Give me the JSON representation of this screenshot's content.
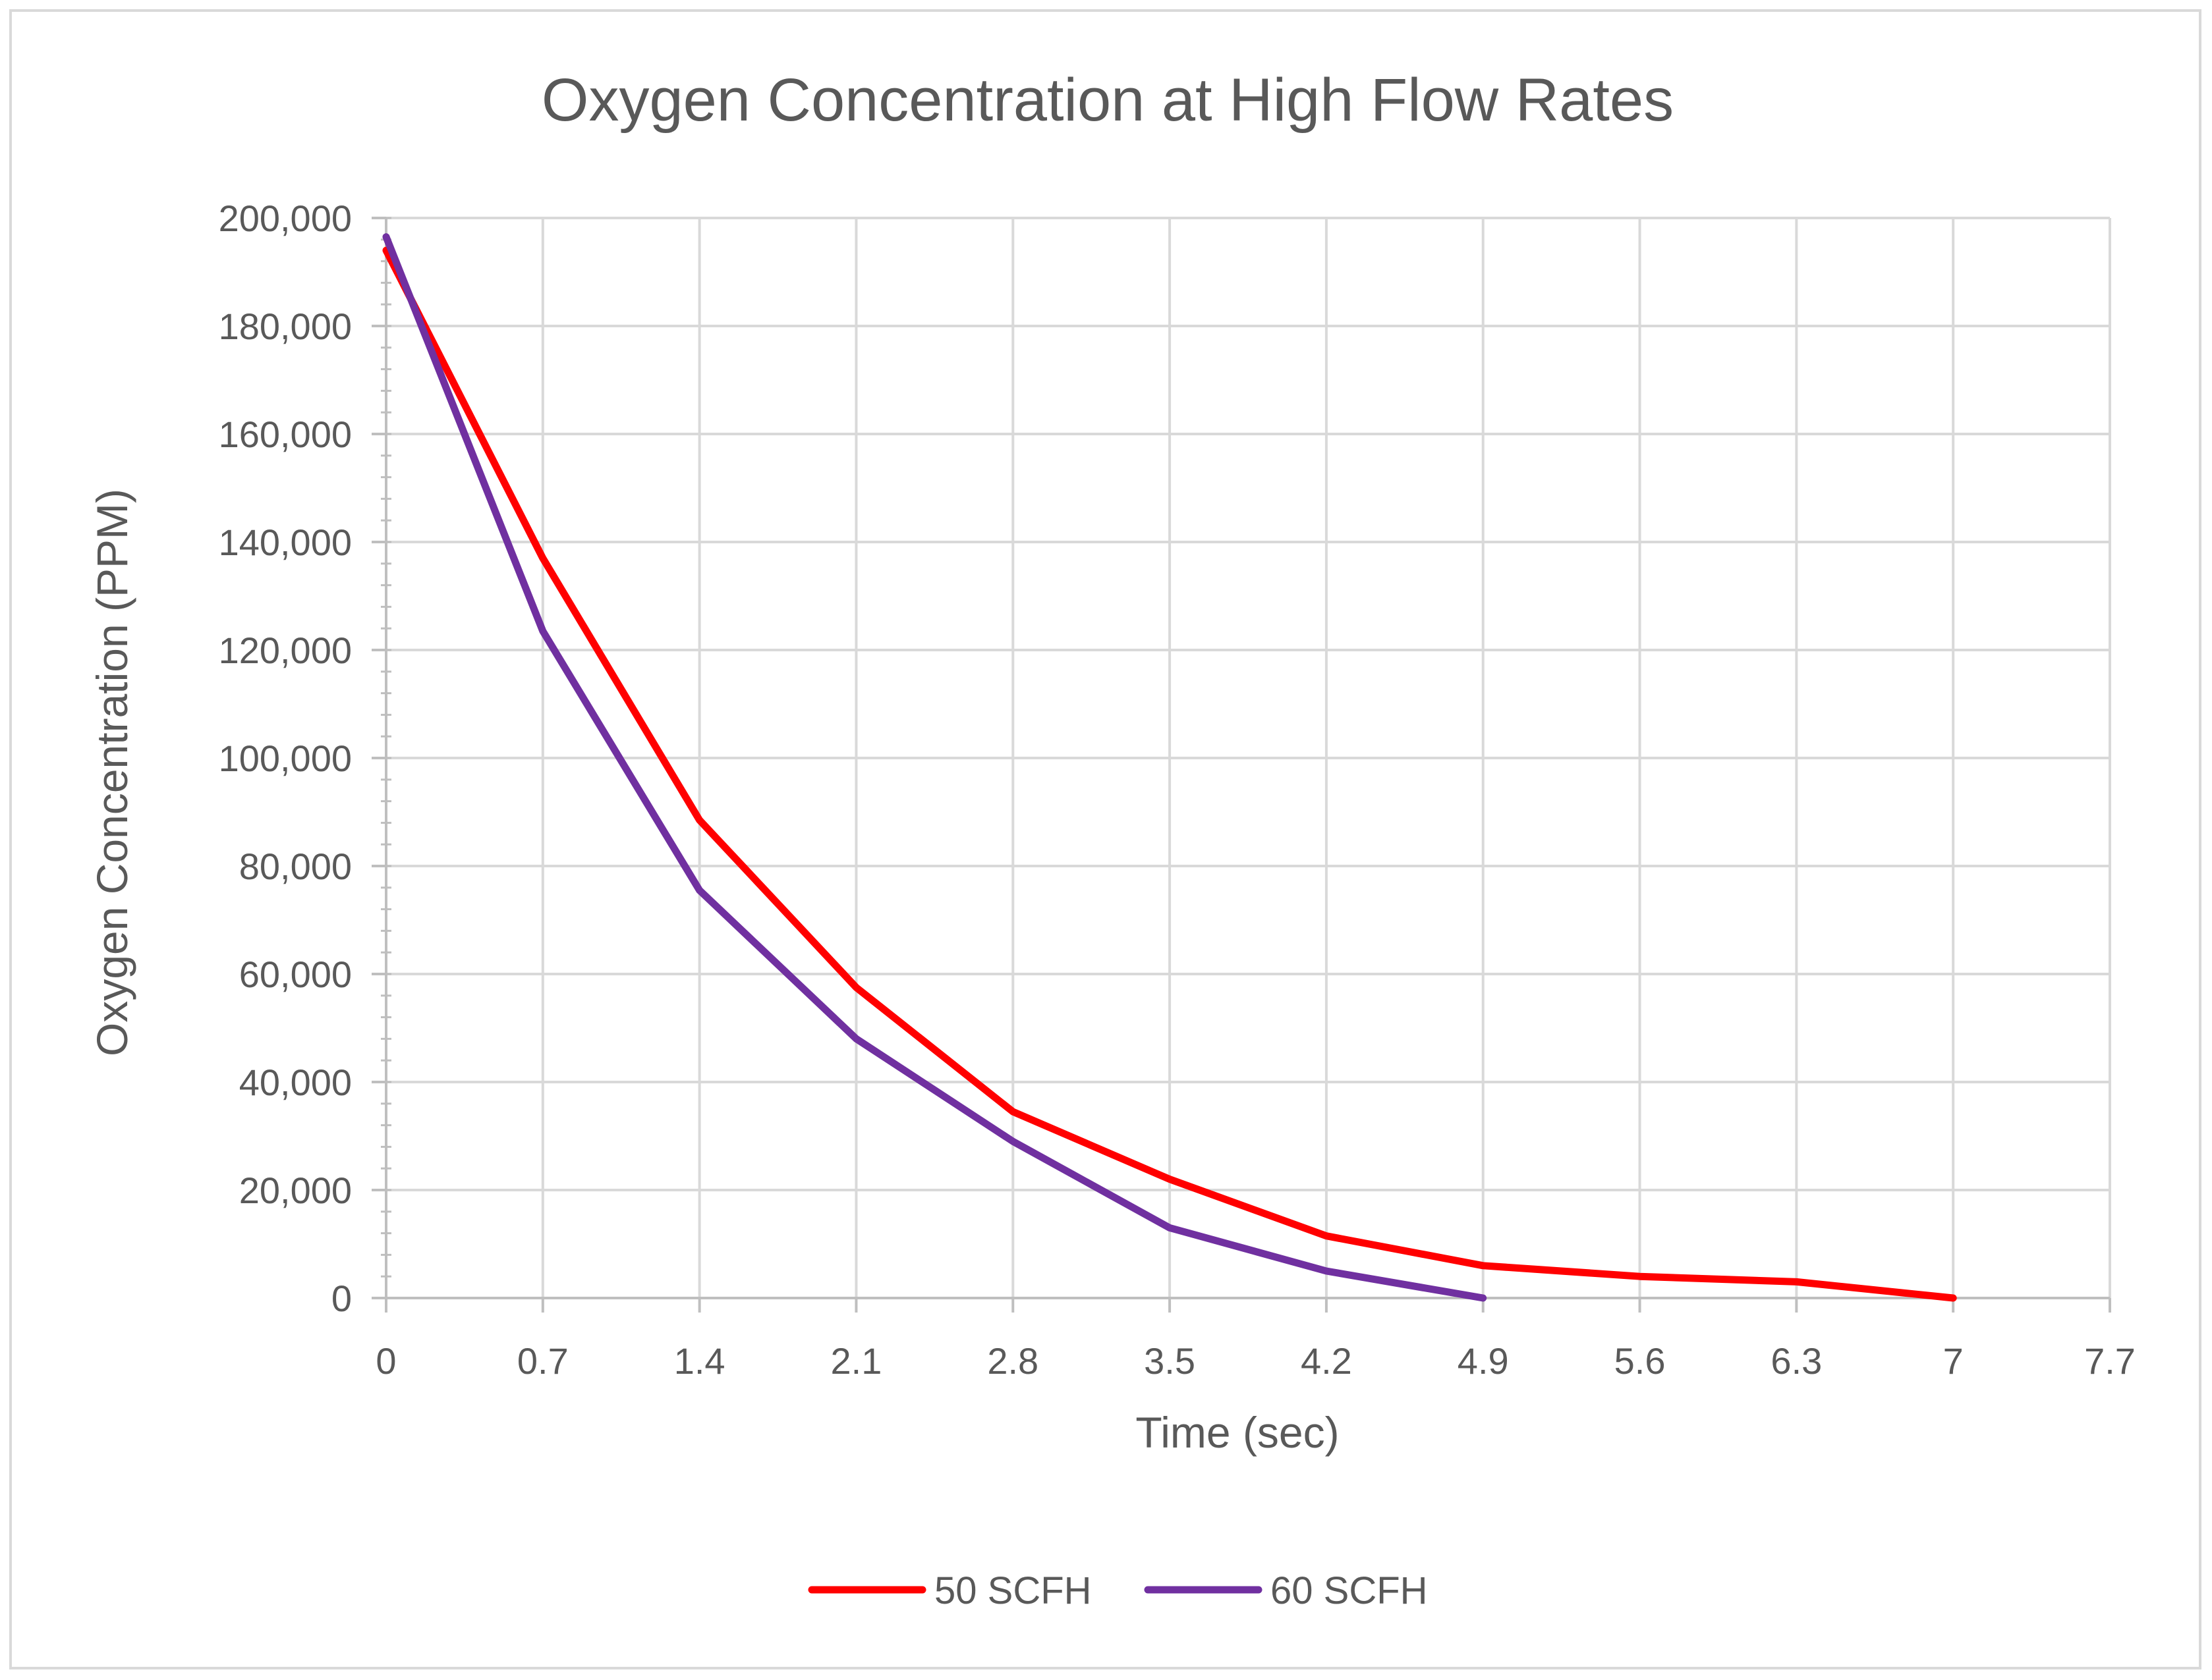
{
  "chart_data": {
    "type": "line",
    "title": "Oxygen Concentration at High Flow Rates",
    "xlabel": "Time (sec)",
    "ylabel": "Oxygen Concentration (PPM)",
    "xlim": [
      0,
      7.7
    ],
    "ylim": [
      0,
      200000
    ],
    "x_ticks": [
      "0",
      "0.7",
      "1.4",
      "2.1",
      "2.8",
      "3.5",
      "4.2",
      "4.9",
      "5.6",
      "6.3",
      "7",
      "7.7"
    ],
    "y_ticks": [
      "0",
      "20,000",
      "40,000",
      "60,000",
      "80,000",
      "100,000",
      "120,000",
      "140,000",
      "160,000",
      "180,000",
      "200,000"
    ],
    "grid": true,
    "legend_position": "bottom",
    "series": [
      {
        "name": "50 SCFH",
        "color": "#ff0000",
        "x": [
          0,
          0.7,
          1.4,
          2.1,
          2.8,
          3.5,
          4.2,
          4.9,
          5.6,
          6.3,
          7
        ],
        "y": [
          194000,
          137000,
          88500,
          57500,
          34500,
          22000,
          11500,
          6000,
          4000,
          3000,
          0
        ]
      },
      {
        "name": "60 SCFH",
        "color": "#7030a0",
        "x": [
          0,
          0.7,
          1.4,
          2.1,
          2.8,
          3.5,
          4.2,
          4.9
        ],
        "y": [
          196500,
          123500,
          75500,
          48000,
          29000,
          13000,
          5000,
          0
        ]
      }
    ]
  }
}
